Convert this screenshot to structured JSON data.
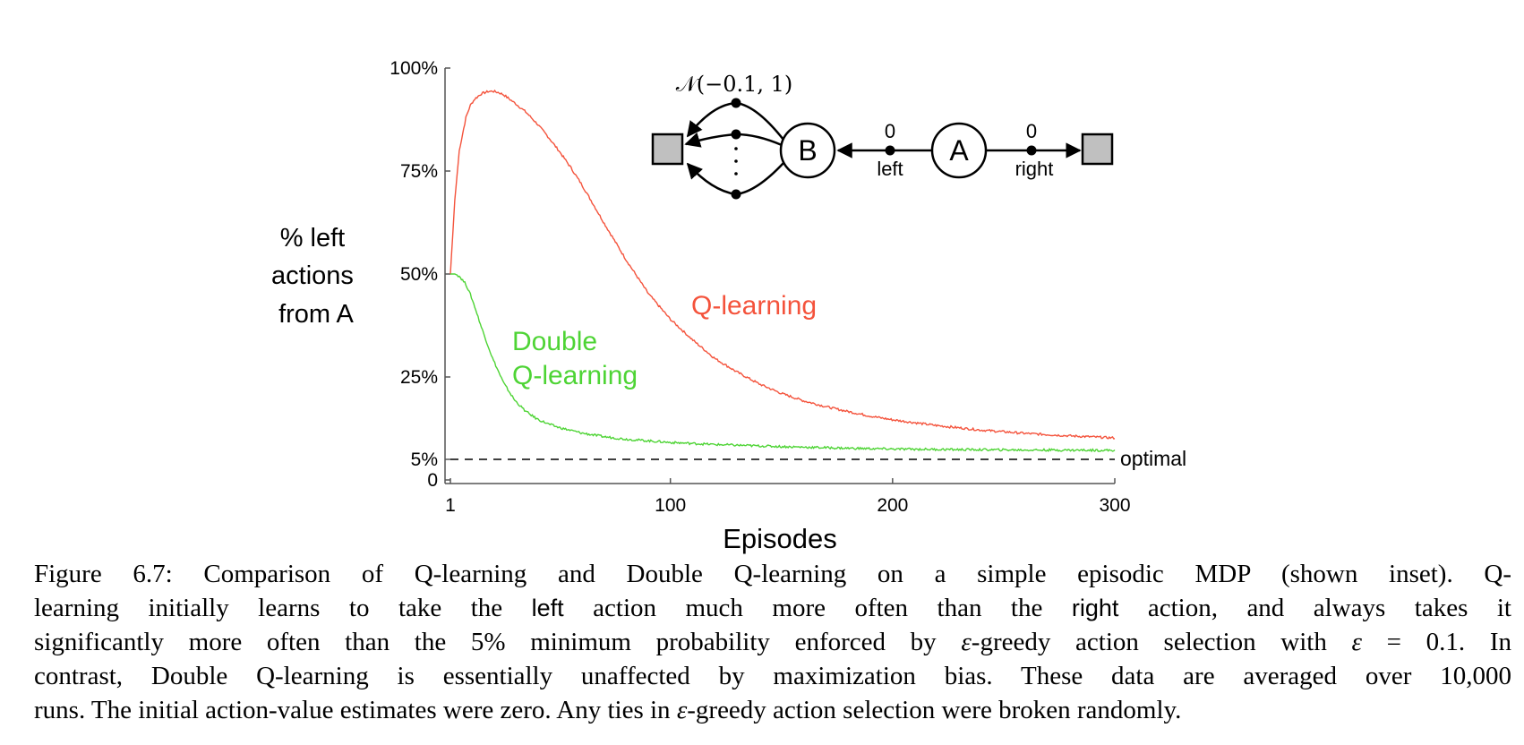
{
  "chart_data": {
    "type": "line",
    "xlabel": "Episodes",
    "ylabel": [
      "% left",
      "actions",
      "from A"
    ],
    "xlim": [
      1,
      300
    ],
    "ylim": [
      0,
      100
    ],
    "x_ticks": [
      {
        "value": 1,
        "label": "1"
      },
      {
        "value": 100,
        "label": "100"
      },
      {
        "value": 200,
        "label": "200"
      },
      {
        "value": 300,
        "label": "300"
      }
    ],
    "y_ticks": [
      {
        "value": 0,
        "label": "0"
      },
      {
        "value": 5,
        "label": "5%"
      },
      {
        "value": 25,
        "label": "25%"
      },
      {
        "value": 50,
        "label": "50%"
      },
      {
        "value": 75,
        "label": "75%"
      },
      {
        "value": 100,
        "label": "100%"
      }
    ],
    "series": [
      {
        "name": "Q-learning",
        "color": "#f4533c",
        "x": [
          1,
          3,
          5,
          8,
          10,
          12,
          15,
          18,
          20,
          23,
          25,
          30,
          35,
          40,
          45,
          50,
          55,
          60,
          65,
          70,
          80,
          90,
          100,
          110,
          120,
          130,
          140,
          150,
          160,
          170,
          180,
          190,
          200,
          220,
          240,
          260,
          280,
          300
        ],
        "values": [
          50,
          68,
          80,
          88,
          91,
          92.5,
          93.8,
          94.3,
          94.4,
          94,
          93.5,
          91.5,
          89.3,
          86.5,
          83.3,
          79.8,
          76,
          71.8,
          67.2,
          62.5,
          53.5,
          45.3,
          39,
          34,
          29.5,
          26.2,
          23.3,
          21,
          19.2,
          17.8,
          16.6,
          15.5,
          14.6,
          13.2,
          12.1,
          11.3,
          10.7,
          10.2
        ]
      },
      {
        "name": "Double\nQ-learning",
        "color": "#4ed435",
        "x": [
          1,
          3,
          5,
          8,
          10,
          12,
          15,
          20,
          25,
          30,
          35,
          40,
          45,
          50,
          60,
          70,
          80,
          100,
          120,
          150,
          180,
          200,
          250,
          300
        ],
        "values": [
          50,
          50,
          49.5,
          47.5,
          45,
          42,
          37,
          29.5,
          23.5,
          19.3,
          16.6,
          14.8,
          13.6,
          12.7,
          11.4,
          10.5,
          9.9,
          9.1,
          8.6,
          8.1,
          7.7,
          7.5,
          7.3,
          7.2
        ]
      }
    ],
    "reference_line": {
      "value": 5,
      "label": "optimal",
      "style": "dashed"
    },
    "inset": {
      "states": [
        "B",
        "A"
      ],
      "rewards": [
        "0",
        "0"
      ],
      "actions": [
        "left",
        "right"
      ],
      "distribution": "𝒩(−0.1, 1)",
      "terminal_fill": "#c0c0c0"
    }
  },
  "caption": {
    "line1_prefix": "Figure 6.7:  Comparison of Q-learning and Double Q-learning on a simple episodic MDP (shown inset).  Q-",
    "line2_a": "learning initially learns to take the ",
    "line2_left": "left",
    "line2_b": " action much more often than the ",
    "line2_right": "right",
    "line2_c": " action, and always takes it",
    "line3_a": "significantly more often than the 5% minimum probability enforced by ",
    "line3_eps1": "ε",
    "line3_b": "-greedy action selection with ",
    "line3_eps2": "ε",
    "line3_c": " = 0.1.  In",
    "line4": "contrast, Double Q-learning is essentially unaffected by maximization bias.  These data are averaged over 10,000",
    "line5_a": "runs.  The initial action-value estimates were zero.  Any ties in ",
    "line5_eps": "ε",
    "line5_b": "-greedy action selection were broken randomly."
  }
}
